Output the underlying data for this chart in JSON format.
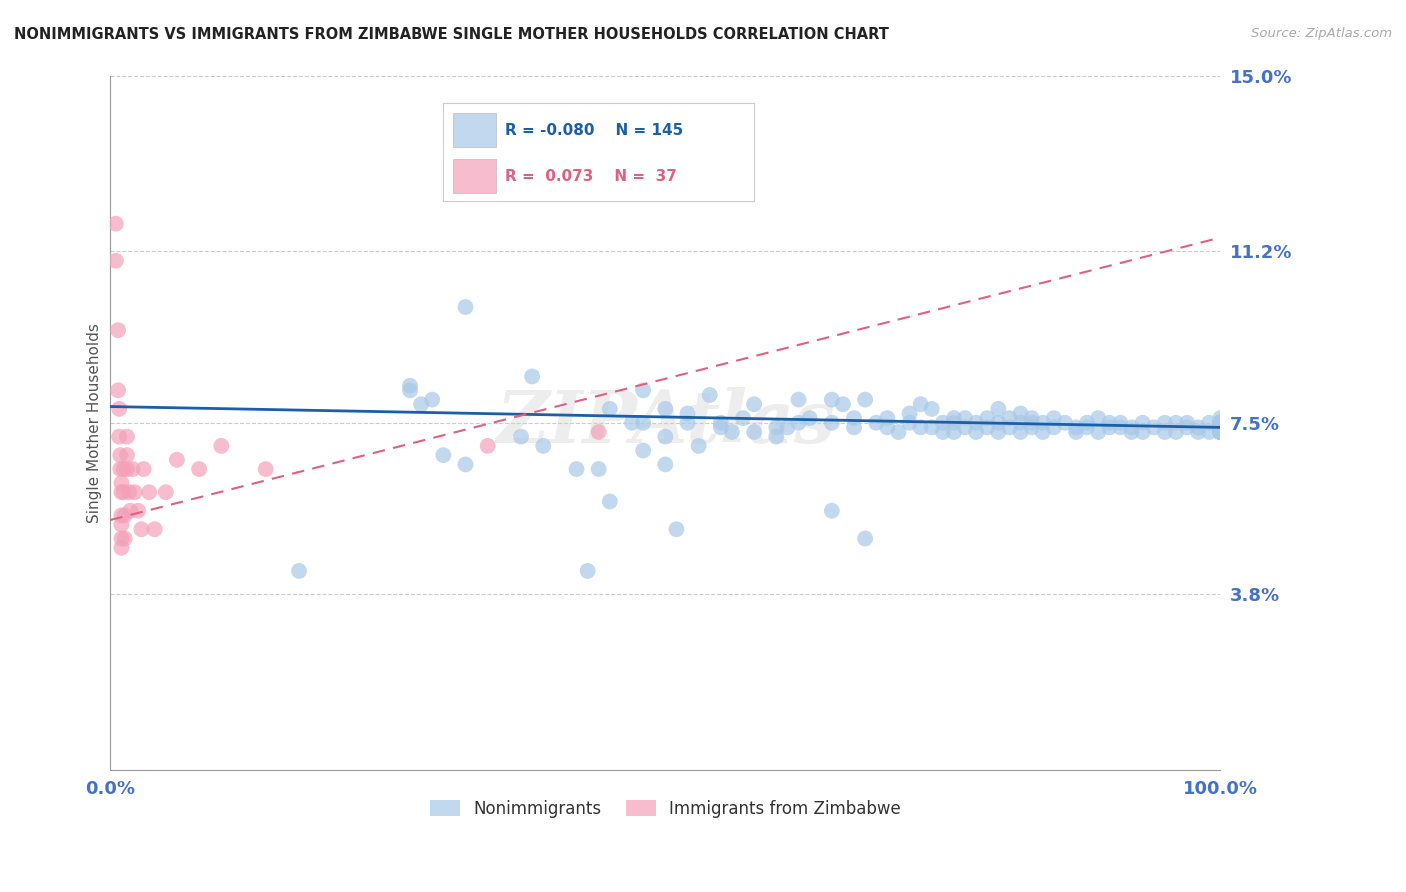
{
  "title": "NONIMMIGRANTS VS IMMIGRANTS FROM ZIMBABWE SINGLE MOTHER HOUSEHOLDS CORRELATION CHART",
  "source": "Source: ZipAtlas.com",
  "ylabel": "Single Mother Households",
  "xlim": [
    0,
    1.0
  ],
  "ylim": [
    0,
    0.15
  ],
  "yticks": [
    0.038,
    0.075,
    0.112,
    0.15
  ],
  "ytick_labels": [
    "3.8%",
    "7.5%",
    "11.2%",
    "15.0%"
  ],
  "xtick_labels": [
    "0.0%",
    "100.0%"
  ],
  "legend_r_blue": "-0.080",
  "legend_n_blue": "145",
  "legend_r_pink": " 0.073",
  "legend_n_pink": " 37",
  "blue_color": "#a8c8e8",
  "pink_color": "#f4a0b8",
  "blue_line_color": "#1a5fa8",
  "pink_line_color": "#e06080",
  "axis_label_color": "#4472c4",
  "watermark": "ZIPAtlas",
  "blue_scatter_x": [
    0.17,
    0.27,
    0.27,
    0.28,
    0.29,
    0.3,
    0.32,
    0.32,
    0.37,
    0.38,
    0.39,
    0.42,
    0.43,
    0.44,
    0.45,
    0.45,
    0.47,
    0.48,
    0.48,
    0.48,
    0.5,
    0.5,
    0.5,
    0.51,
    0.52,
    0.52,
    0.53,
    0.54,
    0.55,
    0.55,
    0.56,
    0.57,
    0.58,
    0.58,
    0.6,
    0.6,
    0.61,
    0.62,
    0.62,
    0.63,
    0.65,
    0.65,
    0.65,
    0.66,
    0.67,
    0.67,
    0.68,
    0.68,
    0.69,
    0.7,
    0.7,
    0.71,
    0.72,
    0.72,
    0.73,
    0.73,
    0.74,
    0.74,
    0.75,
    0.75,
    0.76,
    0.76,
    0.76,
    0.77,
    0.77,
    0.78,
    0.78,
    0.79,
    0.79,
    0.8,
    0.8,
    0.8,
    0.81,
    0.81,
    0.82,
    0.82,
    0.82,
    0.83,
    0.83,
    0.83,
    0.84,
    0.84,
    0.85,
    0.85,
    0.86,
    0.87,
    0.87,
    0.88,
    0.88,
    0.89,
    0.89,
    0.9,
    0.9,
    0.91,
    0.91,
    0.92,
    0.92,
    0.93,
    0.93,
    0.94,
    0.95,
    0.95,
    0.96,
    0.96,
    0.97,
    0.97,
    0.98,
    0.98,
    0.99,
    0.99,
    1.0,
    1.0,
    1.0,
    1.0,
    1.0,
    1.0,
    1.0,
    1.0,
    1.0,
    1.0,
    1.0,
    1.0,
    1.0,
    1.0,
    1.0,
    1.0,
    1.0,
    1.0,
    1.0,
    1.0,
    1.0,
    1.0,
    1.0,
    1.0,
    1.0,
    1.0,
    1.0,
    1.0,
    1.0,
    1.0,
    1.0,
    1.0
  ],
  "blue_scatter_y": [
    0.043,
    0.083,
    0.082,
    0.079,
    0.08,
    0.068,
    0.066,
    0.1,
    0.072,
    0.085,
    0.07,
    0.065,
    0.043,
    0.065,
    0.058,
    0.078,
    0.075,
    0.082,
    0.069,
    0.075,
    0.078,
    0.072,
    0.066,
    0.052,
    0.075,
    0.077,
    0.07,
    0.081,
    0.074,
    0.075,
    0.073,
    0.076,
    0.079,
    0.073,
    0.072,
    0.074,
    0.074,
    0.08,
    0.075,
    0.076,
    0.08,
    0.075,
    0.056,
    0.079,
    0.076,
    0.074,
    0.08,
    0.05,
    0.075,
    0.076,
    0.074,
    0.073,
    0.077,
    0.075,
    0.079,
    0.074,
    0.078,
    0.074,
    0.075,
    0.073,
    0.076,
    0.075,
    0.073,
    0.074,
    0.076,
    0.075,
    0.073,
    0.074,
    0.076,
    0.078,
    0.075,
    0.073,
    0.074,
    0.076,
    0.075,
    0.077,
    0.073,
    0.075,
    0.074,
    0.076,
    0.075,
    0.073,
    0.074,
    0.076,
    0.075,
    0.073,
    0.074,
    0.075,
    0.074,
    0.076,
    0.073,
    0.074,
    0.075,
    0.074,
    0.075,
    0.073,
    0.074,
    0.075,
    0.073,
    0.074,
    0.075,
    0.073,
    0.075,
    0.073,
    0.074,
    0.075,
    0.073,
    0.074,
    0.075,
    0.073,
    0.076,
    0.075,
    0.074,
    0.073,
    0.075,
    0.074,
    0.075,
    0.073,
    0.074,
    0.075,
    0.074,
    0.073,
    0.075,
    0.074,
    0.073,
    0.075,
    0.074,
    0.073,
    0.075,
    0.074,
    0.073,
    0.075,
    0.074,
    0.073,
    0.075,
    0.074,
    0.073,
    0.075,
    0.074,
    0.073,
    0.075,
    0.074
  ],
  "pink_scatter_x": [
    0.005,
    0.005,
    0.007,
    0.007,
    0.008,
    0.008,
    0.009,
    0.009,
    0.01,
    0.01,
    0.01,
    0.01,
    0.01,
    0.01,
    0.012,
    0.012,
    0.013,
    0.013,
    0.015,
    0.015,
    0.015,
    0.017,
    0.018,
    0.02,
    0.022,
    0.025,
    0.028,
    0.03,
    0.035,
    0.04,
    0.05,
    0.06,
    0.08,
    0.1,
    0.14,
    0.34,
    0.44
  ],
  "pink_scatter_y": [
    0.118,
    0.11,
    0.095,
    0.082,
    0.078,
    0.072,
    0.068,
    0.065,
    0.062,
    0.06,
    0.055,
    0.053,
    0.05,
    0.048,
    0.065,
    0.06,
    0.055,
    0.05,
    0.072,
    0.068,
    0.065,
    0.06,
    0.056,
    0.065,
    0.06,
    0.056,
    0.052,
    0.065,
    0.06,
    0.052,
    0.06,
    0.067,
    0.065,
    0.07,
    0.065,
    0.07,
    0.073
  ],
  "blue_trend_x": [
    0.0,
    1.0
  ],
  "blue_trend_y": [
    0.0785,
    0.074
  ],
  "pink_trend_x": [
    0.0,
    1.0
  ],
  "pink_trend_y": [
    0.054,
    0.115
  ]
}
